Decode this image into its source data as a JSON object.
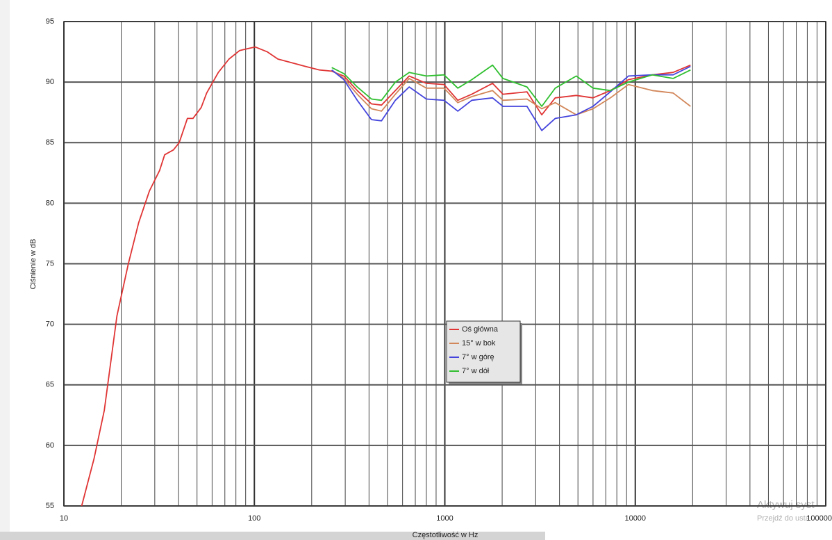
{
  "chart_data": {
    "type": "line",
    "y_label": "Ciśnienie w dB",
    "x_label": "Częstotliwość w Hz",
    "log_x": true,
    "grid": true,
    "legend_position": "center",
    "xlim": [
      10,
      100000
    ],
    "ylim": [
      55,
      95
    ],
    "xticks": [
      10,
      100,
      1000,
      10000,
      100000
    ],
    "yticks": [
      55,
      60,
      65,
      70,
      75,
      80,
      85,
      90,
      95
    ],
    "x": [
      12.4,
      14.4,
      16.3,
      19,
      21.8,
      24.7,
      28.1,
      31.8,
      33.8,
      37.6,
      40.3,
      44.5,
      47.6,
      52.6,
      56.2,
      64.7,
      73.6,
      83.6,
      94.8,
      101,
      117,
      133,
      157,
      185,
      220,
      255,
      295,
      347,
      412,
      465,
      550,
      650,
      800,
      990,
      1170,
      1385,
      1780,
      2020,
      2700,
      3230,
      3800,
      4900,
      6000,
      7400,
      9200,
      12300,
      15800,
      19500
    ],
    "series": [
      {
        "name": "Oś główna",
        "color": "#e03434",
        "values": [
          55,
          58.9,
          62.9,
          70.7,
          75,
          78.4,
          81,
          82.7,
          84.0,
          84.4,
          85,
          87,
          87,
          87.9,
          89.1,
          90.8,
          91.9,
          92.6,
          92.8,
          92.9,
          92.5,
          91.9,
          91.6,
          91.3,
          91.0,
          90.9,
          90.5,
          89.3,
          88.2,
          88.1,
          89.3,
          90.5,
          89.9,
          89.8,
          88.5,
          89,
          89.9,
          89,
          89.2,
          87.3,
          88.7,
          88.9,
          88.7,
          89.3,
          90.2,
          90.6,
          90.8,
          91.4
        ]
      },
      {
        "name": "15° w bok",
        "color": "#d2875a",
        "values": [
          null,
          null,
          null,
          null,
          null,
          null,
          null,
          null,
          null,
          null,
          null,
          null,
          null,
          null,
          null,
          null,
          null,
          null,
          null,
          null,
          null,
          null,
          null,
          null,
          null,
          91.0,
          90.3,
          89.0,
          87.8,
          87.6,
          89.0,
          90.3,
          89.5,
          89.5,
          88.3,
          88.8,
          89.3,
          88.5,
          88.6,
          87.8,
          88.3,
          87.3,
          87.8,
          88.7,
          89.8,
          89.3,
          89.1,
          88.0
        ]
      },
      {
        "name": "7° w górę",
        "color": "#4444dd",
        "values": [
          null,
          null,
          null,
          null,
          null,
          null,
          null,
          null,
          null,
          null,
          null,
          null,
          null,
          null,
          null,
          null,
          null,
          null,
          null,
          null,
          null,
          null,
          null,
          null,
          null,
          91.0,
          90.2,
          88.5,
          86.9,
          86.8,
          88.5,
          89.6,
          88.6,
          88.5,
          87.6,
          88.5,
          88.7,
          88.0,
          88.0,
          86.0,
          87.0,
          87.3,
          88.0,
          89.2,
          90.5,
          90.6,
          90.6,
          91.3
        ]
      },
      {
        "name": "7° w dół",
        "color": "#2fbf2f",
        "values": [
          null,
          null,
          null,
          null,
          null,
          null,
          null,
          null,
          null,
          null,
          null,
          null,
          null,
          null,
          null,
          null,
          null,
          null,
          null,
          null,
          null,
          null,
          null,
          null,
          null,
          91.2,
          90.7,
          89.6,
          88.6,
          88.5,
          90.0,
          90.8,
          90.5,
          90.6,
          89.5,
          90.2,
          91.4,
          90.3,
          89.6,
          88.0,
          89.5,
          90.5,
          89.5,
          89.3,
          90.0,
          90.6,
          90.3,
          91.0
        ]
      }
    ]
  },
  "watermark": [
    "Aktywuj syst",
    "Przejdź do usta"
  ]
}
